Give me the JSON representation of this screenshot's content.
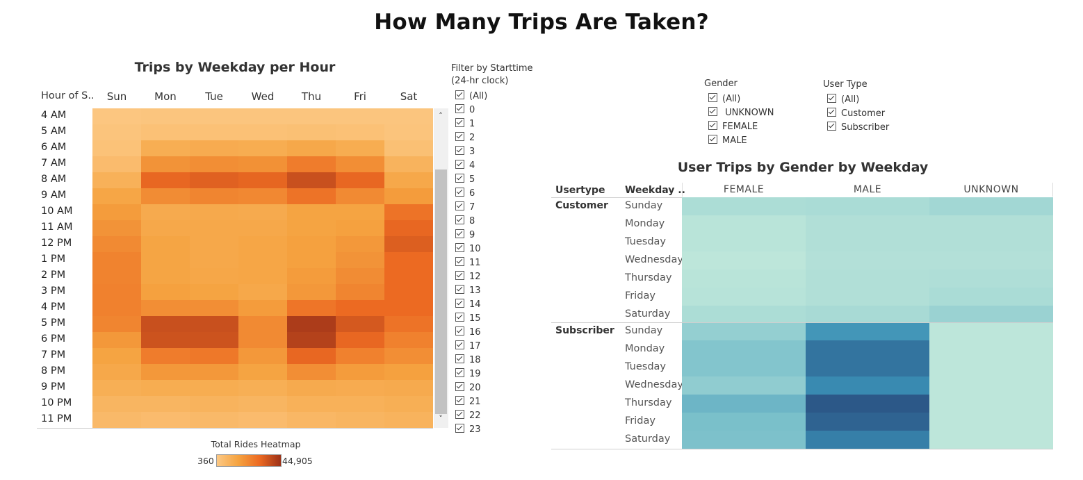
{
  "dashboard": {
    "title": "How Many Trips Are Taken?"
  },
  "heatmap": {
    "title": "Trips by Weekday per Hour",
    "row_header": "Hour of S..",
    "columns": [
      "Sun",
      "Mon",
      "Tue",
      "Wed",
      "Thu",
      "Fri",
      "Sat"
    ],
    "rows": [
      "4 AM",
      "5 AM",
      "6 AM",
      "7 AM",
      "8 AM",
      "9 AM",
      "10 AM",
      "11 AM",
      "12 PM",
      "1 PM",
      "2 PM",
      "3 PM",
      "4 PM",
      "5 PM",
      "6 PM",
      "7 PM",
      "8 PM",
      "9 PM",
      "10 PM",
      "11 PM"
    ],
    "color_low": "#fcc884",
    "color_high": "#9c3118",
    "intensity": [
      [
        0.02,
        0.03,
        0.03,
        0.03,
        0.03,
        0.03,
        0.03
      ],
      [
        0.04,
        0.07,
        0.07,
        0.07,
        0.08,
        0.07,
        0.04
      ],
      [
        0.06,
        0.25,
        0.27,
        0.26,
        0.3,
        0.26,
        0.08
      ],
      [
        0.12,
        0.42,
        0.44,
        0.43,
        0.52,
        0.44,
        0.2
      ],
      [
        0.22,
        0.62,
        0.66,
        0.63,
        0.78,
        0.62,
        0.3
      ],
      [
        0.32,
        0.45,
        0.48,
        0.47,
        0.56,
        0.46,
        0.38
      ],
      [
        0.38,
        0.28,
        0.29,
        0.28,
        0.34,
        0.34,
        0.56
      ],
      [
        0.42,
        0.3,
        0.3,
        0.3,
        0.34,
        0.36,
        0.62
      ],
      [
        0.46,
        0.33,
        0.3,
        0.32,
        0.36,
        0.4,
        0.68
      ],
      [
        0.49,
        0.33,
        0.3,
        0.32,
        0.36,
        0.42,
        0.6
      ],
      [
        0.49,
        0.33,
        0.31,
        0.32,
        0.38,
        0.45,
        0.6
      ],
      [
        0.5,
        0.36,
        0.34,
        0.3,
        0.4,
        0.48,
        0.6
      ],
      [
        0.5,
        0.44,
        0.44,
        0.38,
        0.55,
        0.6,
        0.6
      ],
      [
        0.48,
        0.78,
        0.78,
        0.46,
        0.92,
        0.72,
        0.56
      ],
      [
        0.4,
        0.76,
        0.76,
        0.46,
        0.88,
        0.62,
        0.5
      ],
      [
        0.34,
        0.52,
        0.54,
        0.4,
        0.62,
        0.5,
        0.44
      ],
      [
        0.3,
        0.4,
        0.4,
        0.34,
        0.44,
        0.38,
        0.36
      ],
      [
        0.24,
        0.26,
        0.26,
        0.24,
        0.28,
        0.27,
        0.28
      ],
      [
        0.18,
        0.18,
        0.2,
        0.18,
        0.22,
        0.22,
        0.24
      ],
      [
        0.14,
        0.12,
        0.14,
        0.12,
        0.16,
        0.18,
        0.2
      ]
    ]
  },
  "legend": {
    "title": "Total Rides Heatmap",
    "min_label": "360",
    "max_label": "44,905"
  },
  "starttime_filter": {
    "title_line1": "Filter by Starttime",
    "title_line2": "(24-hr clock)",
    "options": [
      "(All)",
      "0",
      "1",
      "2",
      "3",
      "4",
      "5",
      "6",
      "7",
      "8",
      "9",
      "10",
      "11",
      "12",
      "13",
      "14",
      "15",
      "16",
      "17",
      "18",
      "19",
      "20",
      "21",
      "22",
      "23"
    ]
  },
  "gender_filter": {
    "title": "Gender",
    "options": [
      "(All)",
      " UNKNOWN",
      "FEMALE",
      "MALE"
    ]
  },
  "usertype_filter": {
    "title": "User Type",
    "options": [
      "(All)",
      "Customer",
      "Subscriber"
    ]
  },
  "gender_table": {
    "title": "User Trips by Gender by Weekday",
    "col_usertype": "Usertype",
    "col_weekday": "Weekday ..",
    "genders": [
      "FEMALE",
      "MALE",
      "UNKNOWN"
    ],
    "color_low": "#bde6da",
    "color_high": "#2c5888",
    "groups": [
      {
        "usertype": "Customer",
        "days": [
          "Sunday",
          "Monday",
          "Tuesday",
          "Wednesday",
          "Thursday",
          "Friday",
          "Saturday"
        ],
        "intensity": [
          [
            0.08,
            0.09,
            0.13
          ],
          [
            0.02,
            0.06,
            0.06
          ],
          [
            0.02,
            0.06,
            0.06
          ],
          [
            0.0,
            0.05,
            0.05
          ],
          [
            0.02,
            0.06,
            0.07
          ],
          [
            0.03,
            0.06,
            0.09
          ],
          [
            0.08,
            0.1,
            0.17
          ]
        ]
      },
      {
        "usertype": "Subscriber",
        "days": [
          "Sunday",
          "Monday",
          "Tuesday",
          "Wednesday",
          "Thursday",
          "Friday",
          "Saturday"
        ],
        "intensity": [
          [
            0.2,
            0.56,
            0.0
          ],
          [
            0.28,
            0.8,
            0.0
          ],
          [
            0.28,
            0.8,
            0.0
          ],
          [
            0.22,
            0.64,
            0.0
          ],
          [
            0.38,
            1.0,
            0.0
          ],
          [
            0.32,
            0.92,
            0.0
          ],
          [
            0.31,
            0.72,
            0.0
          ]
        ]
      }
    ]
  }
}
